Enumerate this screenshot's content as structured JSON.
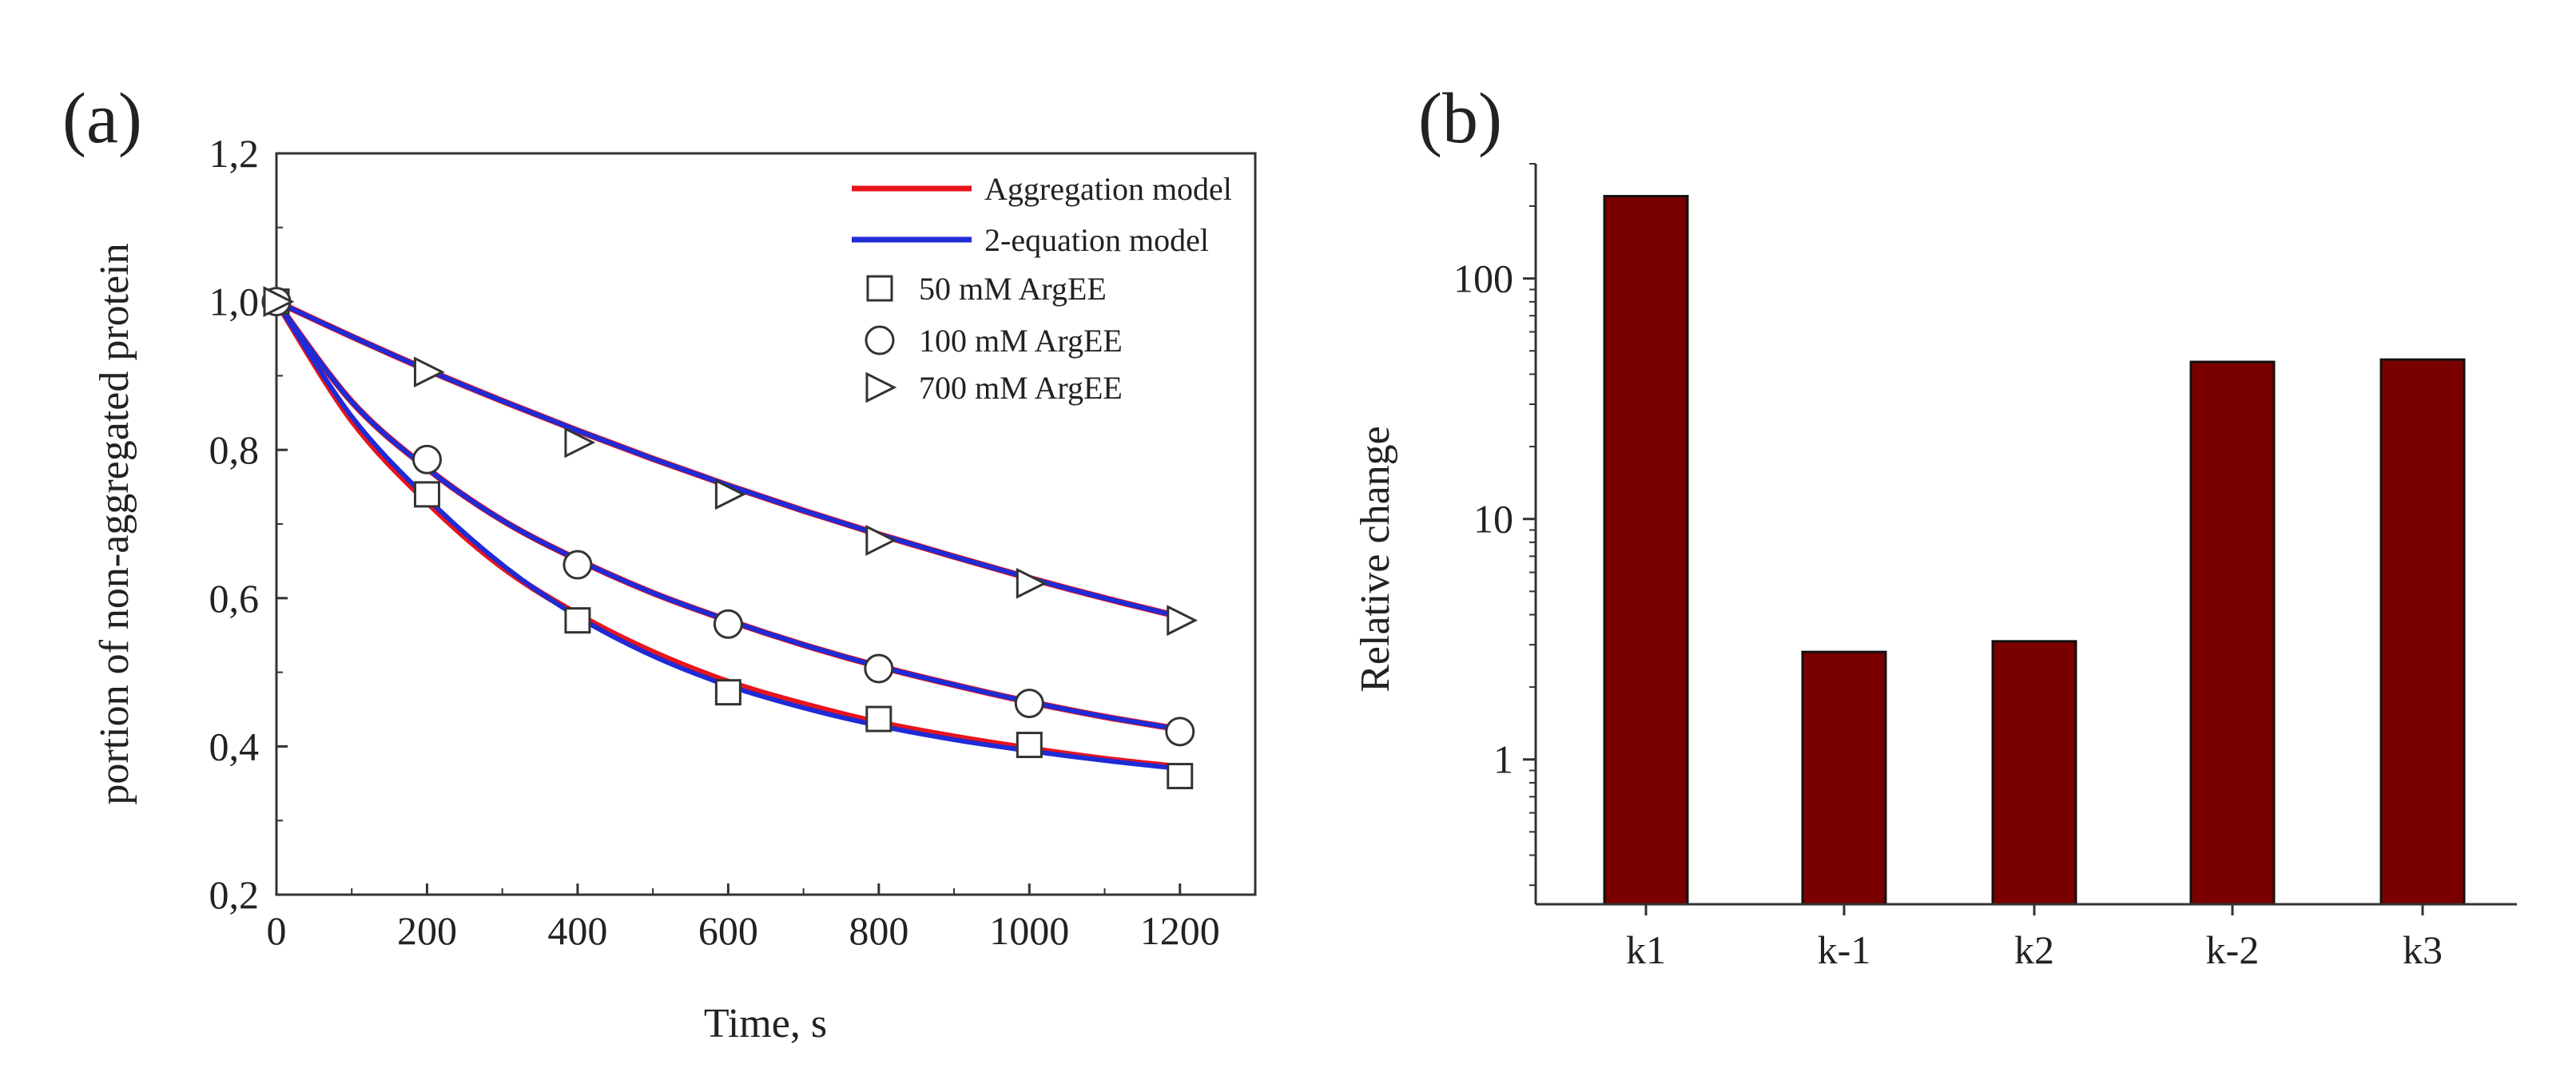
{
  "colors": {
    "model_a": "#e8141c",
    "model_b": "#1f2bd6",
    "marker": "#333333",
    "bar_fill": "#7a0000",
    "bar_stroke": "#111111",
    "axis": "#333333"
  },
  "chart_data": [
    {
      "type": "line",
      "panel_label": "(a)",
      "title": "",
      "xlabel": "Time, s",
      "ylabel": "portion of non-aggregated protein",
      "xlim": [
        0,
        1300
      ],
      "ylim": [
        0.2,
        1.2
      ],
      "xticks": [
        "0",
        "200",
        "400",
        "600",
        "800",
        "1000",
        "1200"
      ],
      "xtick_values": [
        0,
        200,
        400,
        600,
        800,
        1000,
        1200
      ],
      "yticks": [
        "0,2",
        "0,4",
        "0,6",
        "0,8",
        "1,0",
        "1,2"
      ],
      "ytick_values": [
        0.2,
        0.4,
        0.6,
        0.8,
        1.0,
        1.2
      ],
      "legend_position": "top-right",
      "legend": [
        "Aggregation model",
        "2-equation model",
        "50 mM ArgEE",
        "100 mM ArgEE",
        "700 mM ArgEE"
      ],
      "lines": [
        {
          "name": "Aggregation model",
          "color_key": "model_a",
          "curves": [
            {
              "x": [
                0,
                100,
                200,
                300,
                400,
                500,
                600,
                700,
                800,
                900,
                1000,
                1100,
                1200
              ],
              "y": [
                1.0,
                0.84,
                0.73,
                0.642,
                0.578,
                0.527,
                0.487,
                0.457,
                0.432,
                0.413,
                0.397,
                0.383,
                0.372
              ]
            },
            {
              "x": [
                0,
                100,
                200,
                300,
                400,
                500,
                600,
                700,
                800,
                900,
                1000,
                1100,
                1200
              ],
              "y": [
                1.0,
                0.865,
                0.775,
                0.705,
                0.652,
                0.607,
                0.57,
                0.537,
                0.508,
                0.483,
                0.46,
                0.44,
                0.423
              ]
            },
            {
              "x": [
                0,
                100,
                200,
                300,
                400,
                500,
                600,
                700,
                800,
                900,
                1000,
                1100,
                1200
              ],
              "y": [
                1.0,
                0.953,
                0.908,
                0.866,
                0.826,
                0.788,
                0.752,
                0.718,
                0.686,
                0.656,
                0.627,
                0.6,
                0.575
              ]
            }
          ]
        },
        {
          "name": "2-equation model",
          "color_key": "model_b",
          "curves": [
            {
              "x": [
                0,
                100,
                200,
                300,
                400,
                500,
                600,
                700,
                800,
                900,
                1000,
                1100,
                1200
              ],
              "y": [
                1.0,
                0.845,
                0.735,
                0.645,
                0.575,
                0.522,
                0.482,
                0.452,
                0.428,
                0.409,
                0.394,
                0.381,
                0.37
              ]
            },
            {
              "x": [
                0,
                100,
                200,
                300,
                400,
                500,
                600,
                700,
                800,
                900,
                1000,
                1100,
                1200
              ],
              "y": [
                1.0,
                0.865,
                0.775,
                0.705,
                0.652,
                0.607,
                0.57,
                0.537,
                0.508,
                0.483,
                0.46,
                0.44,
                0.423
              ]
            },
            {
              "x": [
                0,
                100,
                200,
                300,
                400,
                500,
                600,
                700,
                800,
                900,
                1000,
                1100,
                1200
              ],
              "y": [
                1.0,
                0.953,
                0.908,
                0.866,
                0.826,
                0.788,
                0.752,
                0.718,
                0.686,
                0.656,
                0.627,
                0.6,
                0.575
              ]
            }
          ]
        }
      ],
      "points": [
        {
          "name": "50 mM ArgEE",
          "marker": "square",
          "x": [
            0,
            200,
            400,
            600,
            800,
            1000,
            1200
          ],
          "y": [
            1.0,
            0.74,
            0.57,
            0.473,
            0.437,
            0.402,
            0.36
          ]
        },
        {
          "name": "100 mM ArgEE",
          "marker": "circle",
          "x": [
            0,
            200,
            400,
            600,
            800,
            1000,
            1200
          ],
          "y": [
            1.0,
            0.787,
            0.645,
            0.565,
            0.505,
            0.458,
            0.42
          ]
        },
        {
          "name": "700 mM ArgEE",
          "marker": "triangle-right",
          "x": [
            0,
            200,
            400,
            600,
            800,
            1000,
            1200
          ],
          "y": [
            1.0,
            0.905,
            0.81,
            0.74,
            0.678,
            0.62,
            0.57
          ]
        }
      ]
    },
    {
      "type": "bar",
      "panel_label": "(b)",
      "title": "",
      "xlabel": "",
      "ylabel": "Relative change",
      "yscale": "log",
      "ylim": [
        0.25,
        300
      ],
      "categories": [
        "k1",
        "k-1",
        "k2",
        "k-2",
        "k3"
      ],
      "values": [
        220,
        2.8,
        3.1,
        45,
        46
      ],
      "yticks": [
        "1",
        "10",
        "100"
      ],
      "ytick_values": [
        1,
        10,
        100
      ]
    }
  ]
}
